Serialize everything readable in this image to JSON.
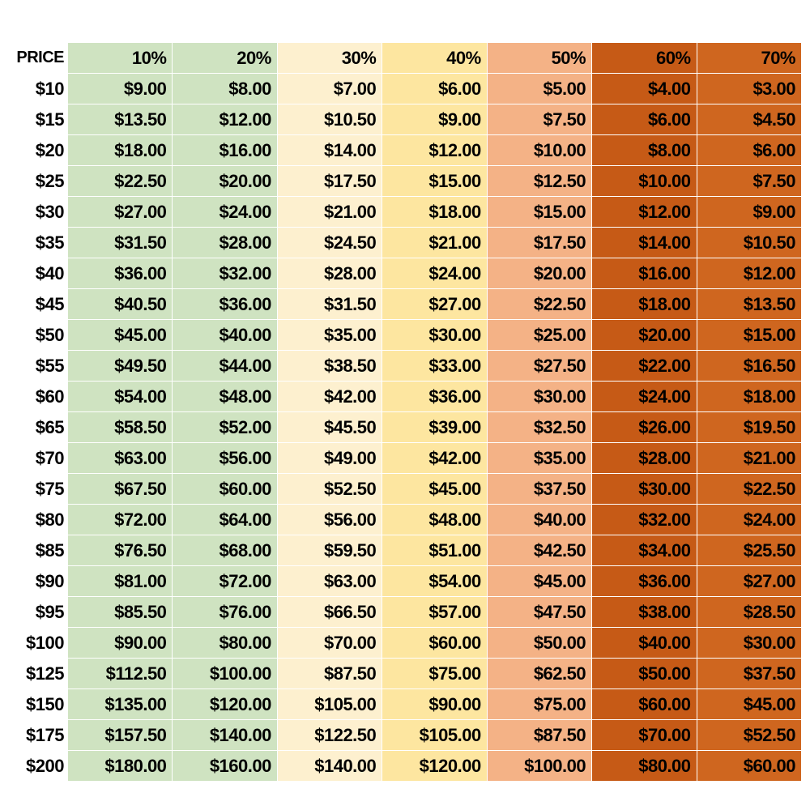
{
  "table": {
    "header": [
      "PRICE",
      "10%",
      "20%",
      "30%",
      "40%",
      "50%",
      "60%",
      "70%"
    ],
    "rows": [
      [
        "$10",
        "$9.00",
        "$8.00",
        "$7.00",
        "$6.00",
        "$5.00",
        "$4.00",
        "$3.00"
      ],
      [
        "$15",
        "$13.50",
        "$12.00",
        "$10.50",
        "$9.00",
        "$7.50",
        "$6.00",
        "$4.50"
      ],
      [
        "$20",
        "$18.00",
        "$16.00",
        "$14.00",
        "$12.00",
        "$10.00",
        "$8.00",
        "$6.00"
      ],
      [
        "$25",
        "$22.50",
        "$20.00",
        "$17.50",
        "$15.00",
        "$12.50",
        "$10.00",
        "$7.50"
      ],
      [
        "$30",
        "$27.00",
        "$24.00",
        "$21.00",
        "$18.00",
        "$15.00",
        "$12.00",
        "$9.00"
      ],
      [
        "$35",
        "$31.50",
        "$28.00",
        "$24.50",
        "$21.00",
        "$17.50",
        "$14.00",
        "$10.50"
      ],
      [
        "$40",
        "$36.00",
        "$32.00",
        "$28.00",
        "$24.00",
        "$20.00",
        "$16.00",
        "$12.00"
      ],
      [
        "$45",
        "$40.50",
        "$36.00",
        "$31.50",
        "$27.00",
        "$22.50",
        "$18.00",
        "$13.50"
      ],
      [
        "$50",
        "$45.00",
        "$40.00",
        "$35.00",
        "$30.00",
        "$25.00",
        "$20.00",
        "$15.00"
      ],
      [
        "$55",
        "$49.50",
        "$44.00",
        "$38.50",
        "$33.00",
        "$27.50",
        "$22.00",
        "$16.50"
      ],
      [
        "$60",
        "$54.00",
        "$48.00",
        "$42.00",
        "$36.00",
        "$30.00",
        "$24.00",
        "$18.00"
      ],
      [
        "$65",
        "$58.50",
        "$52.00",
        "$45.50",
        "$39.00",
        "$32.50",
        "$26.00",
        "$19.50"
      ],
      [
        "$70",
        "$63.00",
        "$56.00",
        "$49.00",
        "$42.00",
        "$35.00",
        "$28.00",
        "$21.00"
      ],
      [
        "$75",
        "$67.50",
        "$60.00",
        "$52.50",
        "$45.00",
        "$37.50",
        "$30.00",
        "$22.50"
      ],
      [
        "$80",
        "$72.00",
        "$64.00",
        "$56.00",
        "$48.00",
        "$40.00",
        "$32.00",
        "$24.00"
      ],
      [
        "$85",
        "$76.50",
        "$68.00",
        "$59.50",
        "$51.00",
        "$42.50",
        "$34.00",
        "$25.50"
      ],
      [
        "$90",
        "$81.00",
        "$72.00",
        "$63.00",
        "$54.00",
        "$45.00",
        "$36.00",
        "$27.00"
      ],
      [
        "$95",
        "$85.50",
        "$76.00",
        "$66.50",
        "$57.00",
        "$47.50",
        "$38.00",
        "$28.50"
      ],
      [
        "$100",
        "$90.00",
        "$80.00",
        "$70.00",
        "$60.00",
        "$50.00",
        "$40.00",
        "$30.00"
      ],
      [
        "$125",
        "$112.50",
        "$100.00",
        "$87.50",
        "$75.00",
        "$62.50",
        "$50.00",
        "$37.50"
      ],
      [
        "$150",
        "$135.00",
        "$120.00",
        "$105.00",
        "$90.00",
        "$75.00",
        "$60.00",
        "$45.00"
      ],
      [
        "$175",
        "$157.50",
        "$140.00",
        "$122.50",
        "$105.00",
        "$87.50",
        "$70.00",
        "$52.50"
      ],
      [
        "$200",
        "$180.00",
        "$160.00",
        "$140.00",
        "$120.00",
        "$100.00",
        "$80.00",
        "$60.00"
      ]
    ]
  }
}
